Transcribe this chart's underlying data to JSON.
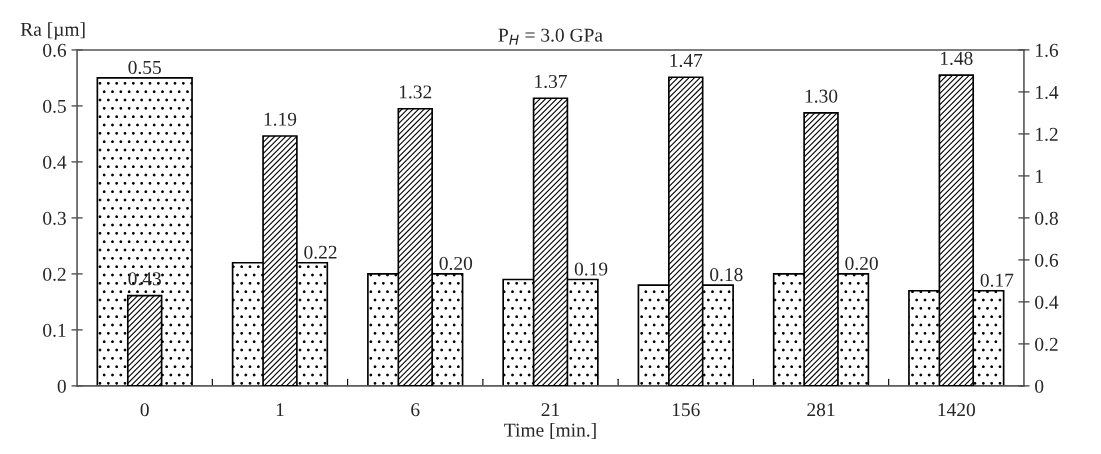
{
  "chart_data": {
    "type": "bar",
    "title": "P$_{H}$ = 3.0 GPa",
    "xlabel": "Time [min.]",
    "ylabel": "Ra [µm]",
    "categories": [
      "0",
      "1",
      "6",
      "21",
      "156",
      "281",
      "1420"
    ],
    "series": [
      {
        "color": "#000000",
        "values": [
          0.55,
          0.22,
          0.2,
          0.19,
          0.18,
          0.2,
          0.17
        ],
        "value_labels": [
          "0.55",
          "0.22",
          "0.20",
          "0.19",
          "0.18",
          "0.20",
          "0.17"
        ]
      },
      {
        "color": "#000000",
        "axis": "y2",
        "values": [
          0.43,
          1.19,
          1.32,
          1.37,
          1.47,
          1.3,
          1.48
        ],
        "value_labels": [
          "0.43",
          "1.19",
          "1.32",
          "1.37",
          "1.47",
          "1.30",
          "1.48"
        ]
      }
    ],
    "ylim": [
      0,
      0.6
    ],
    "yticks": [
      0,
      0.1,
      0.2,
      0.3,
      0.4,
      0.5,
      0.6
    ],
    "y2lim": [
      0,
      1.6
    ],
    "y2ticks": [
      0,
      0.2,
      0.4,
      0.6,
      0.8,
      1,
      1.2,
      1.4,
      1.6
    ],
    "grid": false,
    "legend": false
  }
}
